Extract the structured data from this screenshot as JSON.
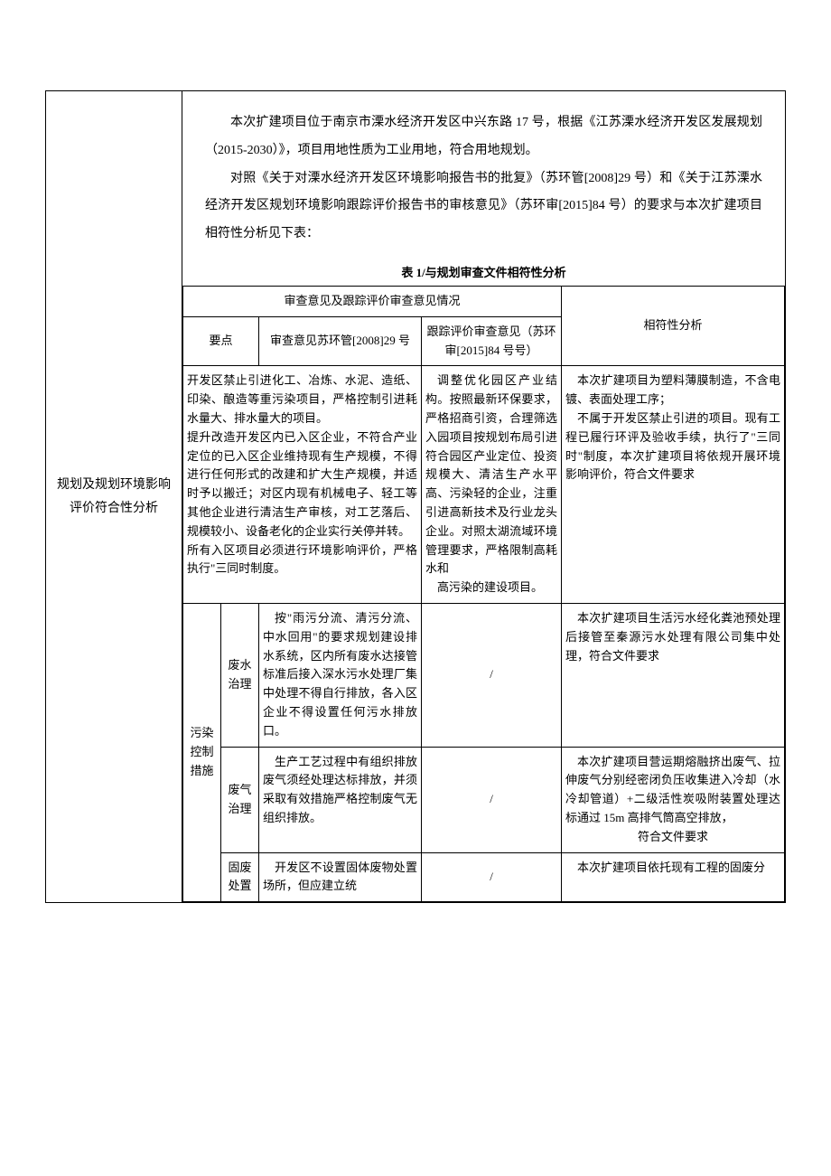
{
  "left_label": "规划及规划环境影响评价符合性分析",
  "intro": {
    "p1": "本次扩建项目位于南京市溧水经济开发区中兴东路 17 号，根据《江苏溧水经济开发区发展规划（2015-2030）》，项目用地性质为工业用地，符合用地规划。",
    "p2": "对照《关于对溧水经济开发区环境影响报告书的批复》（苏环管[2008]29 号）和《关于江苏溧水经济开发区规划环境影响跟踪评价报告书的审核意见》（苏环审[2015]84 号）的要求与本次扩建项目相符性分析见下表：",
    "caption": "表 1/与规划审查文件相符性分析"
  },
  "headers": {
    "group": "审查意见及跟踪评价审查意见情况",
    "c1": "要点",
    "c2": "审查意见苏环管[2008]29 号",
    "c3": "跟踪评价审查意见（苏环审[2015]84 号号）",
    "c4": "相符性分析"
  },
  "row1": {
    "c2a": "开发区禁止引进化工、冶炼、水泥、造纸、印染、酿造等重污染项目，严格控制引进耗水量大、排水量大的项目。",
    "c2b": "提升改造开发区内已入区企业，不符合产业定位的已入区企业维持现有生产规模，不得进行任何形式的改建和扩大生产规模，并适时予以搬迁；对区内现有机械电子、轻工等其他企业进行清洁生产审核，对工艺落后、规模较小、设备老化的企业实行关停并转。",
    "c2c": "所有入区项目必须进行环境影响评价，严格执行\"三同时制度。",
    "c3a": "调整优化园区产业结构。按照最新环保要求，严格招商引资，合理筛选入园项目按规划布局引进符合园区产业定位、投资规模大、清洁生产水平高、污染轻的企业，注重引进高新技术及行业龙头企业。对照太湖流域环境管理要求，严格限制高耗水和",
    "c3b": "高污染的建设项目。",
    "c4a": "本次扩建项目为塑料薄膜制造，不含电镀、表面处理工序；",
    "c4b": "不属于开发区禁止引进的项目。现有工程已履行环评及验收手续，执行了\"三同时\"制度，本次扩建项目将依规开展环境影响评价，符合文件要求"
  },
  "pollution_group": "污染控制措施",
  "row2": {
    "sub": "废水治理",
    "c2": "按\"雨污分流、清污分流、中水回用\"的要求规划建设排水系统，区内所有废水达接管标准后接入深水污水处理厂集中处理不得自行排放，各入区企业不得设置任何污水排放口。",
    "c3": "/",
    "c4": "本次扩建项目生活污水经化粪池预处理后接管至秦源污水处理有限公司集中处理，符合文件要求"
  },
  "row3": {
    "sub": "废气治理",
    "c2": "生产工艺过程中有组织排放废气须经处理达标排放，并须采取有效措施严格控制废气无组织排放。",
    "c3": "/",
    "c4a": "本次扩建项目营运期熔融挤出废气、拉伸废气分别经密闭负压收集进入冷却（水冷却管道）+二级活性炭吸附装置处理达标通过 15m 高排气筒高空排放，",
    "c4b": "符合文件要求"
  },
  "row4": {
    "sub": "固废处置",
    "c2": "开发区不设置固体废物处置场所，但应建立统",
    "c3": "/",
    "c4": "本次扩建项目依托现有工程的固废分"
  }
}
